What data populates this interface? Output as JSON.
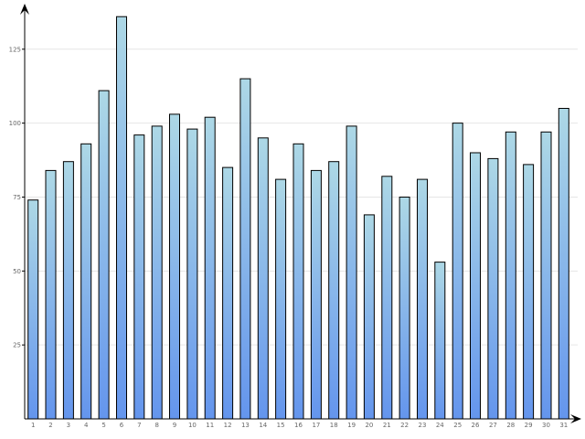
{
  "chart_data": {
    "type": "bar",
    "title": "",
    "xlabel": "",
    "ylabel": "",
    "categories": [
      "1",
      "2",
      "3",
      "4",
      "5",
      "6",
      "7",
      "8",
      "9",
      "10",
      "11",
      "12",
      "13",
      "14",
      "15",
      "16",
      "17",
      "18",
      "19",
      "20",
      "21",
      "22",
      "23",
      "24",
      "25",
      "26",
      "27",
      "28",
      "29",
      "30",
      "31"
    ],
    "values": [
      74,
      84,
      87,
      93,
      111,
      136,
      96,
      99,
      103,
      98,
      102,
      85,
      115,
      95,
      81,
      93,
      84,
      87,
      99,
      69,
      82,
      75,
      81,
      53,
      100,
      90,
      88,
      97,
      86,
      97,
      105
    ],
    "ylim": [
      0,
      137
    ],
    "yticks": [
      25,
      50,
      75,
      100,
      125
    ],
    "ytick_labels": [
      "25",
      "50",
      "75",
      "100",
      "125"
    ],
    "grid": true,
    "legend": "none",
    "colors": {
      "bar_top": "#add8e6",
      "bar_bottom": "#6495ed",
      "bar_stroke": "#000000",
      "grid": "#e6e6e6",
      "axis": "#000000",
      "tick_label": "#666666"
    }
  }
}
